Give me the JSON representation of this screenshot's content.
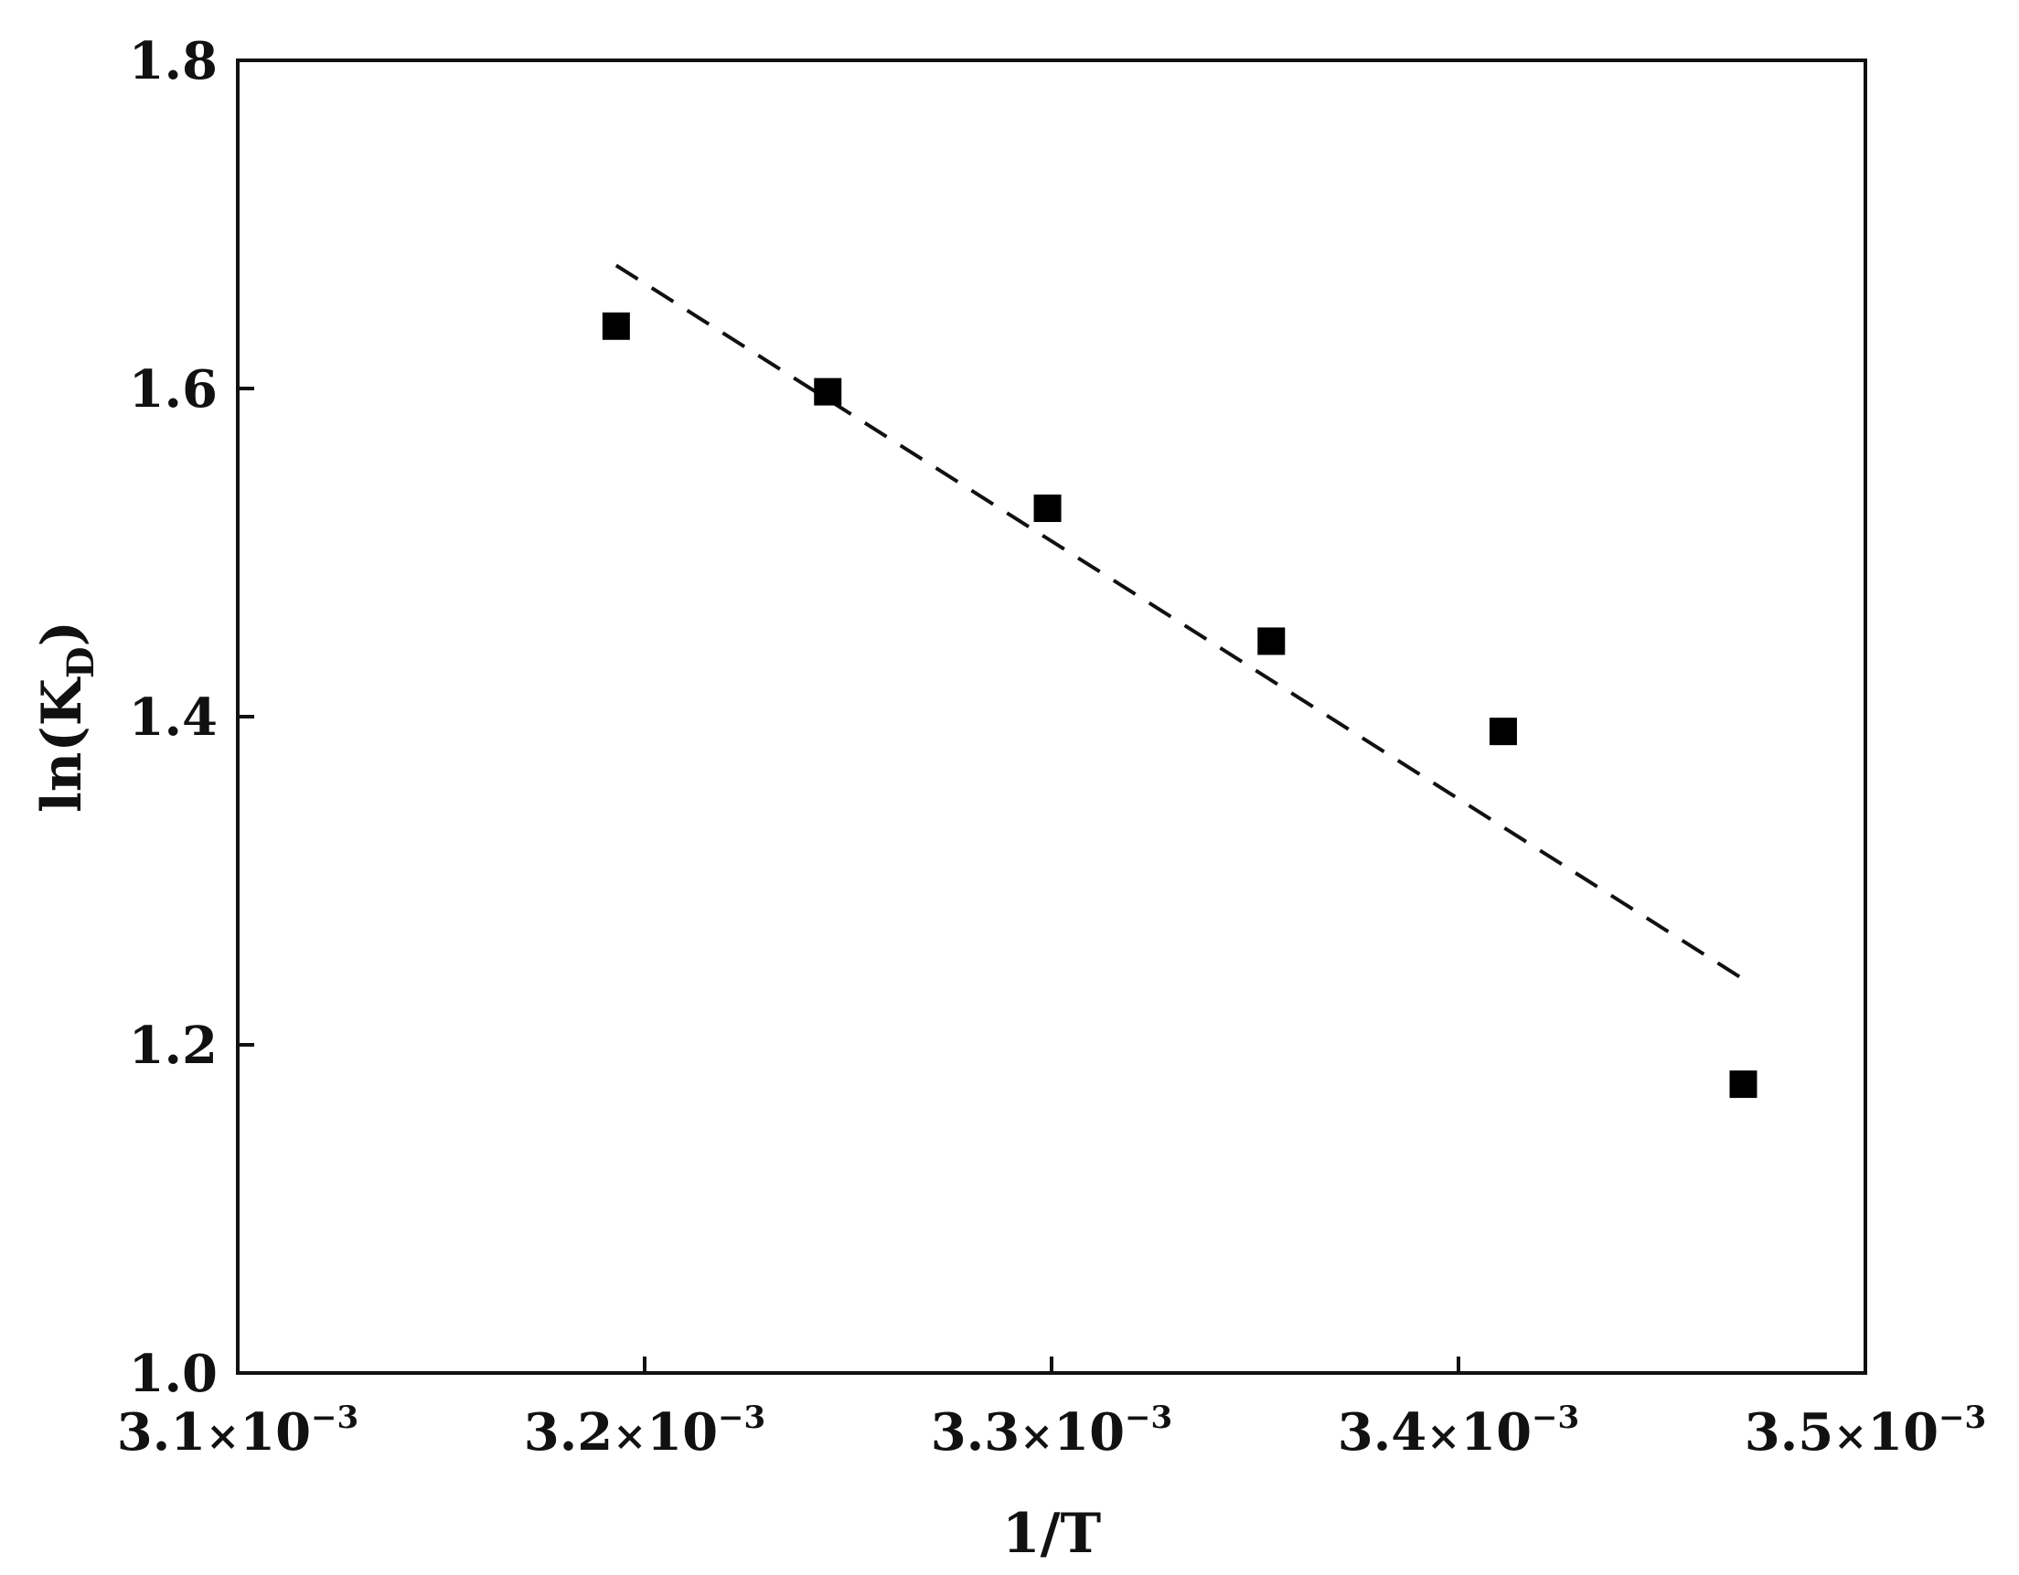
{
  "chart_data": {
    "type": "scatter",
    "xlabel": "1/T",
    "ylabel": "ln(K",
    "ylabel_sub": "D",
    "ylabel_close": ")",
    "xlim": [
      0.0031,
      0.0035
    ],
    "ylim": [
      1.0,
      1.8
    ],
    "x_ticks": [
      {
        "value": 0.0031,
        "mantissa": "3.1",
        "times": "×",
        "base": "10",
        "exponent": "−3"
      },
      {
        "value": 0.0032,
        "mantissa": "3.2",
        "times": "×",
        "base": "10",
        "exponent": "−3"
      },
      {
        "value": 0.0033,
        "mantissa": "3.3",
        "times": "×",
        "base": "10",
        "exponent": "−3"
      },
      {
        "value": 0.0034,
        "mantissa": "3.4",
        "times": "×",
        "base": "10",
        "exponent": "−3"
      },
      {
        "value": 0.0035,
        "mantissa": "3.5",
        "times": "×",
        "base": "10",
        "exponent": "−3"
      }
    ],
    "y_ticks": [
      {
        "value": 1.0,
        "label": "1.0"
      },
      {
        "value": 1.2,
        "label": "1.2"
      },
      {
        "value": 1.4,
        "label": "1.4"
      },
      {
        "value": 1.6,
        "label": "1.6"
      },
      {
        "value": 1.8,
        "label": "1.8"
      }
    ],
    "points": [
      {
        "x": 0.003193,
        "y": 1.638
      },
      {
        "x": 0.003245,
        "y": 1.598
      },
      {
        "x": 0.003299,
        "y": 1.527
      },
      {
        "x": 0.003354,
        "y": 1.446
      },
      {
        "x": 0.003411,
        "y": 1.391
      },
      {
        "x": 0.00347,
        "y": 1.176
      }
    ],
    "fit_line": {
      "style": "dashed",
      "x": [
        0.003193,
        0.00347
      ],
      "y": [
        1.675,
        1.24
      ]
    },
    "grid": false,
    "marker": "square",
    "color": "#000000"
  }
}
